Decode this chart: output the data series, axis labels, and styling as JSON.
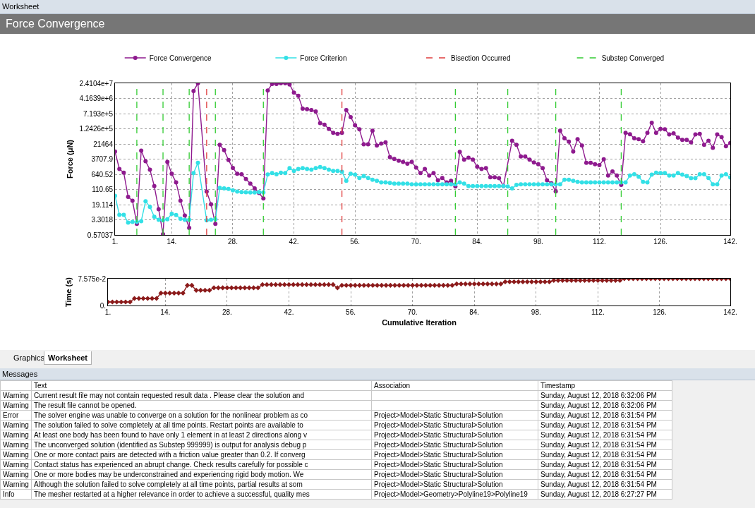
{
  "chart_data": [
    {
      "type": "line",
      "title": "Force Convergence",
      "ylabel": "Force (μN)",
      "log": "y",
      "grid": true,
      "legend": "top",
      "marker": "circle",
      "xlim": [
        1,
        142
      ],
      "xticks": [
        {
          "value": 1,
          "label": "1."
        },
        {
          "value": 14,
          "label": "14."
        },
        {
          "value": 28,
          "label": "28."
        },
        {
          "value": 42,
          "label": "42."
        },
        {
          "value": 56,
          "label": "56."
        },
        {
          "value": 70,
          "label": "70."
        },
        {
          "value": 84,
          "label": "84."
        },
        {
          "value": 98,
          "label": "98."
        },
        {
          "value": 112,
          "label": "112."
        },
        {
          "value": 126,
          "label": "126."
        },
        {
          "value": 142,
          "label": "142."
        }
      ],
      "ylim": [
        0.57037,
        24104000
      ],
      "yticks": [
        0.57037,
        3.3018,
        19.114,
        110.65,
        640.52,
        3707.9,
        21464,
        {
          "value": 124260,
          "label": "1.2426e+5"
        },
        {
          "value": 719300,
          "label": "7.193e+5"
        },
        {
          "value": 4163900,
          "label": "4.1639e+6"
        },
        {
          "value": 24104000,
          "label": "2.4104e+7"
        }
      ],
      "series": [
        {
          "name": "Force Convergence",
          "color": "#8e1a8e",
          "x": [
            1,
            2,
            3,
            4,
            5,
            6,
            7,
            8,
            9,
            10,
            11,
            12,
            13,
            14,
            15,
            16,
            17,
            18,
            19,
            20,
            22,
            23,
            24,
            25,
            26,
            27,
            28,
            29,
            30,
            31,
            32,
            33,
            34,
            35,
            36,
            37,
            38,
            39,
            40,
            41,
            42,
            43,
            44,
            45,
            46,
            47,
            48,
            49,
            50,
            51,
            52,
            53,
            54,
            55,
            56,
            57,
            58,
            59,
            60,
            61,
            62,
            63,
            64,
            65,
            66,
            67,
            68,
            69,
            70,
            71,
            72,
            73,
            74,
            75,
            76,
            77,
            78,
            79,
            80,
            81,
            82,
            83,
            84,
            85,
            86,
            87,
            88,
            89,
            90,
            92,
            93,
            94,
            95,
            96,
            97,
            98,
            99,
            100,
            101,
            102,
            103,
            104,
            105,
            106,
            107,
            108,
            109,
            110,
            111,
            112,
            113,
            114,
            115,
            116,
            117,
            118,
            119,
            120,
            121,
            122,
            123,
            124,
            125,
            126,
            127,
            128,
            129,
            130,
            131,
            132,
            133,
            134,
            135,
            136,
            137,
            138,
            139,
            140,
            141,
            142
          ],
          "values": [
            8900,
            1180,
            775,
            47,
            30,
            2.05,
            9900,
            2900,
            1100,
            163,
            11.3,
            0.62,
            2650,
            675,
            248,
            30,
            5.4,
            1.3,
            9900000,
            24000000,
            87,
            19.8,
            2.05,
            19300,
            10400,
            3330,
            1340,
            675,
            640,
            372,
            216,
            125,
            73,
            39,
            10500000,
            22000000,
            22000000,
            24000000,
            24000000,
            21000000,
            8100000,
            5600000,
            1270000,
            1200000,
            1090000,
            910000,
            240000,
            200000,
            122000,
            77000,
            69000,
            77000,
            1090000,
            480000,
            187000,
            116000,
            20800,
            20800,
            100000,
            18000,
            22500,
            26000,
            4600,
            3800,
            3100,
            2650,
            2200,
            2650,
            1400,
            740,
            1180,
            550,
            740,
            320,
            420,
            250,
            300,
            155,
            8600,
            3500,
            4400,
            3500,
            1540,
            1180,
            1300,
            450,
            450,
            410,
            163,
            31000,
            19300,
            5000,
            5000,
            3500,
            2500,
            2050,
            1300,
            320,
            227,
            88,
            100000,
            41000,
            28000,
            8900,
            37000,
            18000,
            2400,
            2400,
            2050,
            1840,
            3600,
            550,
            895,
            550,
            187,
            77000,
            66000,
            41000,
            37000,
            29000,
            77000,
            250000,
            77000,
            122000,
            116000,
            64000,
            73000,
            45000,
            34000,
            34000,
            26000,
            64000,
            69000,
            19300,
            31000,
            13700,
            64000,
            48000,
            16300,
            24000
          ]
        },
        {
          "name": "Force Criterion",
          "color": "#33e0e6",
          "x": [
            1,
            2,
            3,
            4,
            5,
            6,
            7,
            8,
            9,
            10,
            11,
            12,
            13,
            14,
            15,
            16,
            17,
            18,
            19,
            20,
            22,
            23,
            24,
            25,
            26,
            27,
            28,
            29,
            30,
            31,
            32,
            33,
            34,
            35,
            36,
            37,
            38,
            39,
            40,
            41,
            42,
            43,
            44,
            45,
            46,
            47,
            48,
            49,
            50,
            51,
            52,
            53,
            54,
            55,
            56,
            57,
            58,
            59,
            60,
            61,
            62,
            63,
            64,
            65,
            66,
            67,
            68,
            69,
            70,
            71,
            72,
            73,
            74,
            75,
            76,
            77,
            78,
            79,
            80,
            81,
            82,
            83,
            84,
            85,
            86,
            87,
            88,
            89,
            90,
            91,
            92,
            93,
            94,
            95,
            96,
            97,
            98,
            99,
            100,
            101,
            102,
            103,
            104,
            105,
            106,
            107,
            108,
            109,
            110,
            111,
            112,
            113,
            114,
            115,
            116,
            117,
            118,
            119,
            120,
            121,
            122,
            123,
            124,
            125,
            126,
            127,
            128,
            129,
            130,
            131,
            132,
            133,
            134,
            135,
            136,
            137,
            138,
            139,
            140,
            141,
            142
          ],
          "values": [
            53,
            5.9,
            5.9,
            2.37,
            2.6,
            2.6,
            2.8,
            28,
            14.8,
            4.7,
            3.3,
            3.1,
            3.5,
            6.6,
            5.7,
            3.7,
            3.3,
            3.3,
            740,
            2400,
            3.1,
            3.3,
            3.5,
            132,
            125,
            118,
            99,
            87,
            82,
            79,
            78,
            78,
            82,
            78,
            630,
            740,
            640,
            775,
            740,
            1300,
            950,
            1180,
            1300,
            1180,
            1100,
            1300,
            1470,
            1300,
            1100,
            950,
            950,
            860,
            300,
            675,
            610,
            420,
            520,
            420,
            340,
            300,
            250,
            250,
            235,
            216,
            216,
            216,
            216,
            200,
            200,
            200,
            200,
            200,
            200,
            200,
            200,
            200,
            200,
            200,
            250,
            216,
            163,
            163,
            163,
            163,
            163,
            163,
            163,
            163,
            163,
            155,
            125,
            187,
            200,
            200,
            200,
            200,
            200,
            200,
            200,
            200,
            200,
            200,
            340,
            340,
            300,
            265,
            250,
            250,
            250,
            250,
            250,
            250,
            250,
            250,
            250,
            250,
            250,
            550,
            640,
            480,
            265,
            250,
            610,
            775,
            740,
            740,
            550,
            550,
            740,
            610,
            520,
            410,
            410,
            640,
            640,
            420,
            200,
            200,
            550,
            640,
            440
          ]
        }
      ],
      "ref_lines": [
        {
          "axis": "x",
          "value": 22,
          "label": "Bisection Occurred",
          "color": "#e03c3c",
          "line_style": "dashed"
        },
        {
          "axis": "x",
          "value": 53,
          "color": "#e03c3c",
          "line_style": "dashed"
        },
        {
          "axis": "x",
          "value": 6,
          "label": "Substep Converged",
          "color": "#33cc33",
          "line_style": "dashed"
        },
        {
          "axis": "x",
          "value": 12,
          "color": "#33cc33",
          "line_style": "dashed"
        },
        {
          "axis": "x",
          "value": 18,
          "color": "#33cc33",
          "line_style": "dashed"
        },
        {
          "axis": "x",
          "value": 24,
          "color": "#33cc33",
          "line_style": "dashed"
        },
        {
          "axis": "x",
          "value": 35,
          "color": "#33cc33",
          "line_style": "dashed"
        },
        {
          "axis": "x",
          "value": 79,
          "color": "#33cc33",
          "line_style": "dashed"
        },
        {
          "axis": "x",
          "value": 91,
          "color": "#33cc33",
          "line_style": "dashed"
        },
        {
          "axis": "x",
          "value": 102,
          "color": "#33cc33",
          "line_style": "dashed"
        },
        {
          "axis": "x",
          "value": 117,
          "color": "#33cc33",
          "line_style": "dashed"
        }
      ]
    },
    {
      "type": "line",
      "ylabel": "Time (s)",
      "xlabel": "Cumulative Iteration",
      "grid": true,
      "marker": "diamond",
      "xlim": [
        1,
        142
      ],
      "xticks": [
        {
          "value": 1,
          "label": "1."
        },
        {
          "value": 14,
          "label": "14."
        },
        {
          "value": 28,
          "label": "28."
        },
        {
          "value": 42,
          "label": "42."
        },
        {
          "value": 56,
          "label": "56."
        },
        {
          "value": 70,
          "label": "70."
        },
        {
          "value": 84,
          "label": "84."
        },
        {
          "value": 98,
          "label": "98."
        },
        {
          "value": 112,
          "label": "112."
        },
        {
          "value": 126,
          "label": "126."
        },
        {
          "value": 142,
          "label": "142."
        }
      ],
      "ylim": [
        0,
        0.07575
      ],
      "yticks": [
        {
          "value": 0,
          "label": "0."
        },
        {
          "value": 0.07575,
          "label": "7.575e-2"
        }
      ],
      "x": [
        1,
        2,
        3,
        4,
        5,
        6,
        7,
        8,
        9,
        10,
        11,
        12,
        13,
        14,
        15,
        16,
        17,
        18,
        19,
        20,
        21,
        22,
        23,
        24,
        25,
        26,
        27,
        28,
        29,
        30,
        31,
        32,
        33,
        34,
        35,
        36,
        37,
        38,
        39,
        40,
        41,
        42,
        43,
        44,
        45,
        46,
        47,
        48,
        49,
        50,
        51,
        52,
        53,
        54,
        55,
        56,
        57,
        58,
        59,
        60,
        61,
        62,
        63,
        64,
        65,
        66,
        67,
        68,
        69,
        70,
        71,
        72,
        73,
        74,
        75,
        76,
        77,
        78,
        79,
        80,
        81,
        82,
        83,
        84,
        85,
        86,
        87,
        88,
        89,
        90,
        91,
        92,
        93,
        94,
        95,
        96,
        97,
        98,
        99,
        100,
        101,
        102,
        103,
        104,
        105,
        106,
        107,
        108,
        109,
        110,
        111,
        112,
        113,
        114,
        115,
        116,
        117,
        118,
        119,
        120,
        121,
        122,
        123,
        124,
        125,
        126,
        127,
        128,
        129,
        130,
        131,
        132,
        133,
        134,
        135,
        136,
        137,
        138,
        139,
        140,
        141,
        142
      ],
      "series": [
        {
          "color": "#8b1a1a",
          "values": [
            0.01,
            0.01,
            0.01,
            0.01,
            0.01,
            0.01,
            0.02,
            0.02,
            0.02,
            0.02,
            0.02,
            0.02,
            0.035,
            0.035,
            0.035,
            0.035,
            0.035,
            0.035,
            0.057,
            0.057,
            0.043,
            0.043,
            0.043,
            0.043,
            0.05,
            0.05,
            0.05,
            0.05,
            0.05,
            0.05,
            0.05,
            0.05,
            0.05,
            0.05,
            0.05,
            0.059,
            0.059,
            0.059,
            0.059,
            0.059,
            0.059,
            0.059,
            0.059,
            0.059,
            0.059,
            0.059,
            0.059,
            0.059,
            0.059,
            0.059,
            0.059,
            0.059,
            0.05,
            0.057,
            0.057,
            0.057,
            0.057,
            0.057,
            0.057,
            0.057,
            0.057,
            0.057,
            0.057,
            0.057,
            0.057,
            0.057,
            0.057,
            0.057,
            0.057,
            0.057,
            0.057,
            0.057,
            0.057,
            0.057,
            0.057,
            0.057,
            0.057,
            0.057,
            0.057,
            0.061,
            0.061,
            0.061,
            0.061,
            0.061,
            0.061,
            0.061,
            0.061,
            0.061,
            0.061,
            0.061,
            0.067,
            0.067,
            0.067,
            0.067,
            0.067,
            0.067,
            0.067,
            0.067,
            0.067,
            0.067,
            0.067,
            0.071,
            0.071,
            0.071,
            0.071,
            0.071,
            0.071,
            0.071,
            0.071,
            0.071,
            0.071,
            0.071,
            0.071,
            0.071,
            0.071,
            0.071,
            0.071,
            0.07575,
            0.07575,
            0.07575,
            0.07575,
            0.07575,
            0.07575,
            0.07575,
            0.07575,
            0.07575,
            0.07575,
            0.07575,
            0.07575,
            0.07575,
            0.07575,
            0.07575,
            0.07575,
            0.07575,
            0.07575,
            0.07575,
            0.07575,
            0.07575,
            0.07575,
            0.07575,
            0.07575,
            0.07575
          ]
        }
      ]
    },
    {
      "type": "other",
      "title": "Messages",
      "annotations": [
        "Worksheet",
        "Graphics",
        "Worksheet",
        "Text",
        "Association",
        "Timestamp",
        "Warning",
        "Current result file may not contain requested result data . Please clear the solution and",
        null,
        "Sunday, August 12, 2018 6:32:06 PM",
        "Warning",
        "The result file  cannot be opened.",
        null,
        "Sunday, August 12, 2018 6:32:06 PM",
        "Error",
        "The solver engine was unable to converge on a solution for the nonlinear problem as co",
        "Project>Model>Static Structural>Solution",
        "Sunday, August 12, 2018 6:31:54 PM",
        "Warning",
        "The solution failed to solve completely at all time points. Restart points are available to",
        "Project>Model>Static Structural>Solution",
        "Sunday, August 12, 2018 6:31:54 PM",
        "Warning",
        "At least one body has been found to have only 1 element in at least 2 directions along v",
        "Project>Model>Static Structural>Solution",
        "Sunday, August 12, 2018 6:31:54 PM",
        "Warning",
        "The unconverged solution (identified as Substep 999999) is output for analysis debug p",
        "Project>Model>Static Structural>Solution",
        "Sunday, August 12, 2018 6:31:54 PM",
        "Warning",
        "One or more contact pairs are detected with a friction value greater than 0.2. If converg",
        "Project>Model>Static Structural>Solution",
        "Sunday, August 12, 2018 6:31:54 PM",
        "Warning",
        "Contact status has experienced an abrupt change.  Check results carefully for possible c",
        "Project>Model>Static Structural>Solution",
        "Sunday, August 12, 2018 6:31:54 PM",
        "Warning",
        "One or more bodies may be underconstrained and experiencing rigid body motion. We",
        "Project>Model>Static Structural>Solution",
        "Sunday, August 12, 2018 6:31:54 PM",
        "Warning",
        "Although the solution failed to solve completely at all time points, partial results at som",
        "Project>Model>Static Structural>Solution",
        "Sunday, August 12, 2018 6:31:54 PM",
        "Info",
        "The mesher restarted at a higher relevance in order to achieve a successful, quality mes",
        "Project>Model>Geometry>Polyline19>Polyline19",
        "Sunday, August 12, 2018 6:27:27 PM"
      ]
    }
  ]
}
